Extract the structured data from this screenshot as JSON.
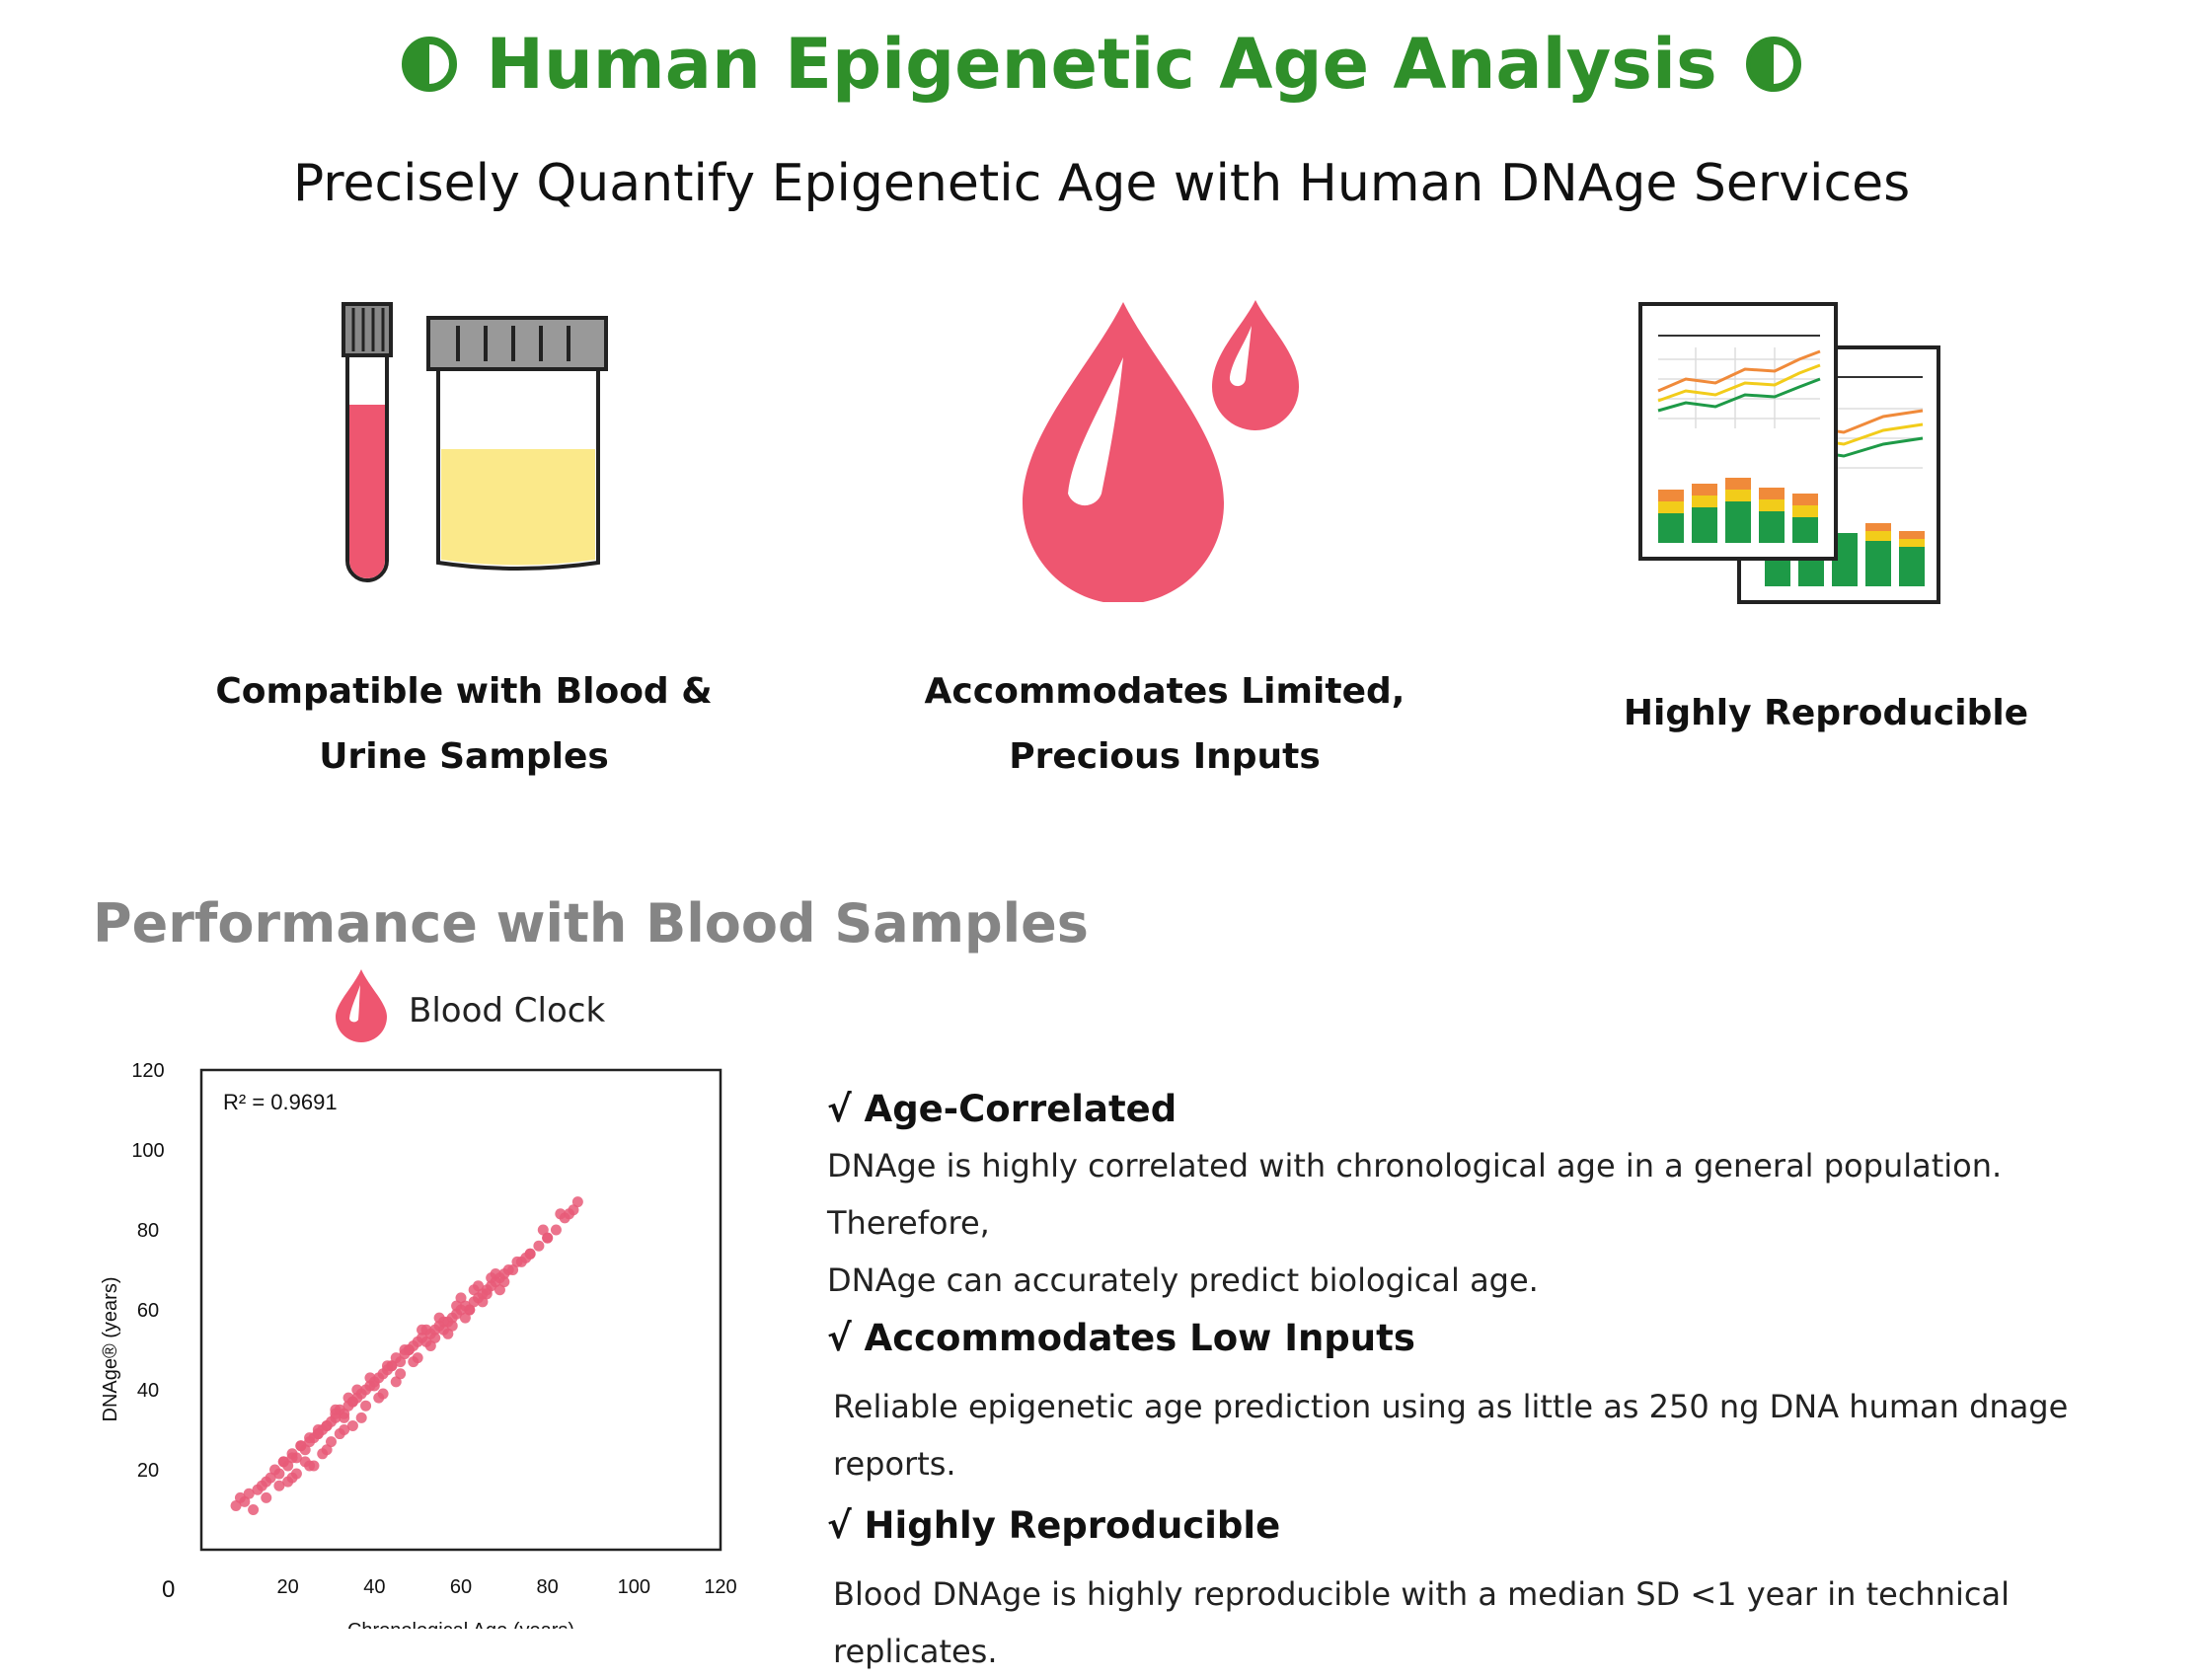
{
  "header": {
    "title": "Human Epigenetic Age Analysis",
    "subtitle": "Precisely Quantify Epigenetic Age with Human DNAge Services",
    "title_color": "#2f8f2a",
    "title_marks_icon": "half-filled-circle-icon"
  },
  "features": [
    {
      "icon": "sample-tubes-icon",
      "line1": "Compatible with Blood &",
      "line2": "Urine Samples"
    },
    {
      "icon": "blood-drops-icon",
      "line1": "Accommodates Limited,",
      "line2": "Precious Inputs"
    },
    {
      "icon": "report-charts-icon",
      "line1": "Highly Reproducible",
      "line2": ""
    }
  ],
  "section": {
    "title": "Performance with Blood Samples",
    "legend_label": "Blood Clock",
    "legend_icon": "blood-drop-icon"
  },
  "chart_data": {
    "type": "scatter",
    "title": "",
    "xlabel": "Chronological Age (years)",
    "ylabel": "DNAge® (years)",
    "annotation": "R² = 0.9691",
    "xlim": [
      0,
      120
    ],
    "ylim": [
      0,
      120
    ],
    "x_ticks": [
      "20",
      "40",
      "60",
      "80",
      "100",
      "120"
    ],
    "y_ticks": [
      "20",
      "40",
      "60",
      "80",
      "100",
      "120"
    ],
    "origin_label": "0",
    "grid": false,
    "marker_color": "#e85a78",
    "series": [
      {
        "x": [
          8,
          9,
          10,
          11,
          12,
          13,
          14,
          15,
          16,
          17,
          18,
          19,
          20,
          21,
          22,
          23,
          24,
          25,
          26,
          27,
          28,
          29,
          30,
          31,
          32,
          33,
          34,
          35,
          36,
          37,
          38,
          39,
          40,
          41,
          42,
          43,
          44,
          45,
          46,
          47,
          48,
          49,
          50,
          51,
          52,
          53,
          54,
          55,
          56,
          57,
          58,
          59,
          60,
          61,
          62,
          63,
          64,
          65,
          66,
          67,
          68,
          69,
          70,
          72,
          74,
          76,
          78,
          80,
          82,
          84,
          86,
          87,
          15,
          18,
          20,
          21,
          22,
          24,
          25,
          26,
          27,
          28,
          29,
          30,
          31,
          32,
          33,
          34,
          35,
          36,
          38,
          40,
          42,
          44,
          46,
          48,
          50,
          52,
          54,
          56,
          58,
          60,
          62,
          64,
          66,
          68,
          70,
          73,
          76,
          79,
          83,
          19,
          21,
          23,
          25,
          27,
          29,
          31,
          33,
          35,
          37,
          39,
          41,
          43,
          45,
          47,
          49,
          51,
          53,
          55,
          57,
          59,
          61,
          63,
          65,
          67,
          69,
          71,
          75,
          80,
          85
        ],
        "y": [
          11,
          13,
          12,
          14,
          10,
          15,
          16,
          17,
          18,
          20,
          19,
          22,
          21,
          24,
          23,
          26,
          25,
          27,
          28,
          29,
          30,
          31,
          32,
          33,
          35,
          34,
          36,
          37,
          38,
          39,
          40,
          41,
          42,
          43,
          44,
          45,
          46,
          48,
          47,
          49,
          50,
          51,
          52,
          53,
          52,
          54,
          55,
          56,
          55,
          57,
          58,
          59,
          60,
          61,
          60,
          62,
          63,
          64,
          65,
          66,
          67,
          68,
          69,
          70,
          72,
          74,
          76,
          78,
          80,
          83,
          85,
          87,
          13,
          16,
          17,
          23,
          19,
          22,
          28,
          21,
          30,
          24,
          31,
          27,
          35,
          29,
          33,
          38,
          31,
          40,
          36,
          41,
          39,
          46,
          44,
          50,
          48,
          55,
          53,
          57,
          56,
          63,
          60,
          66,
          64,
          69,
          67,
          72,
          74,
          80,
          84,
          22,
          18,
          26,
          21,
          29,
          25,
          34,
          30,
          37,
          33,
          43,
          38,
          46,
          42,
          50,
          47,
          55,
          51,
          58,
          54,
          61,
          58,
          65,
          62,
          68,
          65,
          70,
          73,
          78,
          84
        ]
      }
    ]
  },
  "bullets": [
    {
      "heading": "√  Age-Correlated",
      "text_lines": [
        "DNAge is highly correlated with chronological age in a general population. Therefore,",
        "DNAge can accurately predict biological age."
      ]
    },
    {
      "heading": "√  Accommodates Low Inputs",
      "text_lines": [
        "Reliable epigenetic age prediction using as little as 250 ng DNA human dnage reports."
      ]
    },
    {
      "heading": "√  Highly Reproducible",
      "text_lines": [
        "Blood DNAge is highly reproducible with a median SD <1 year in technical replicates."
      ]
    }
  ]
}
